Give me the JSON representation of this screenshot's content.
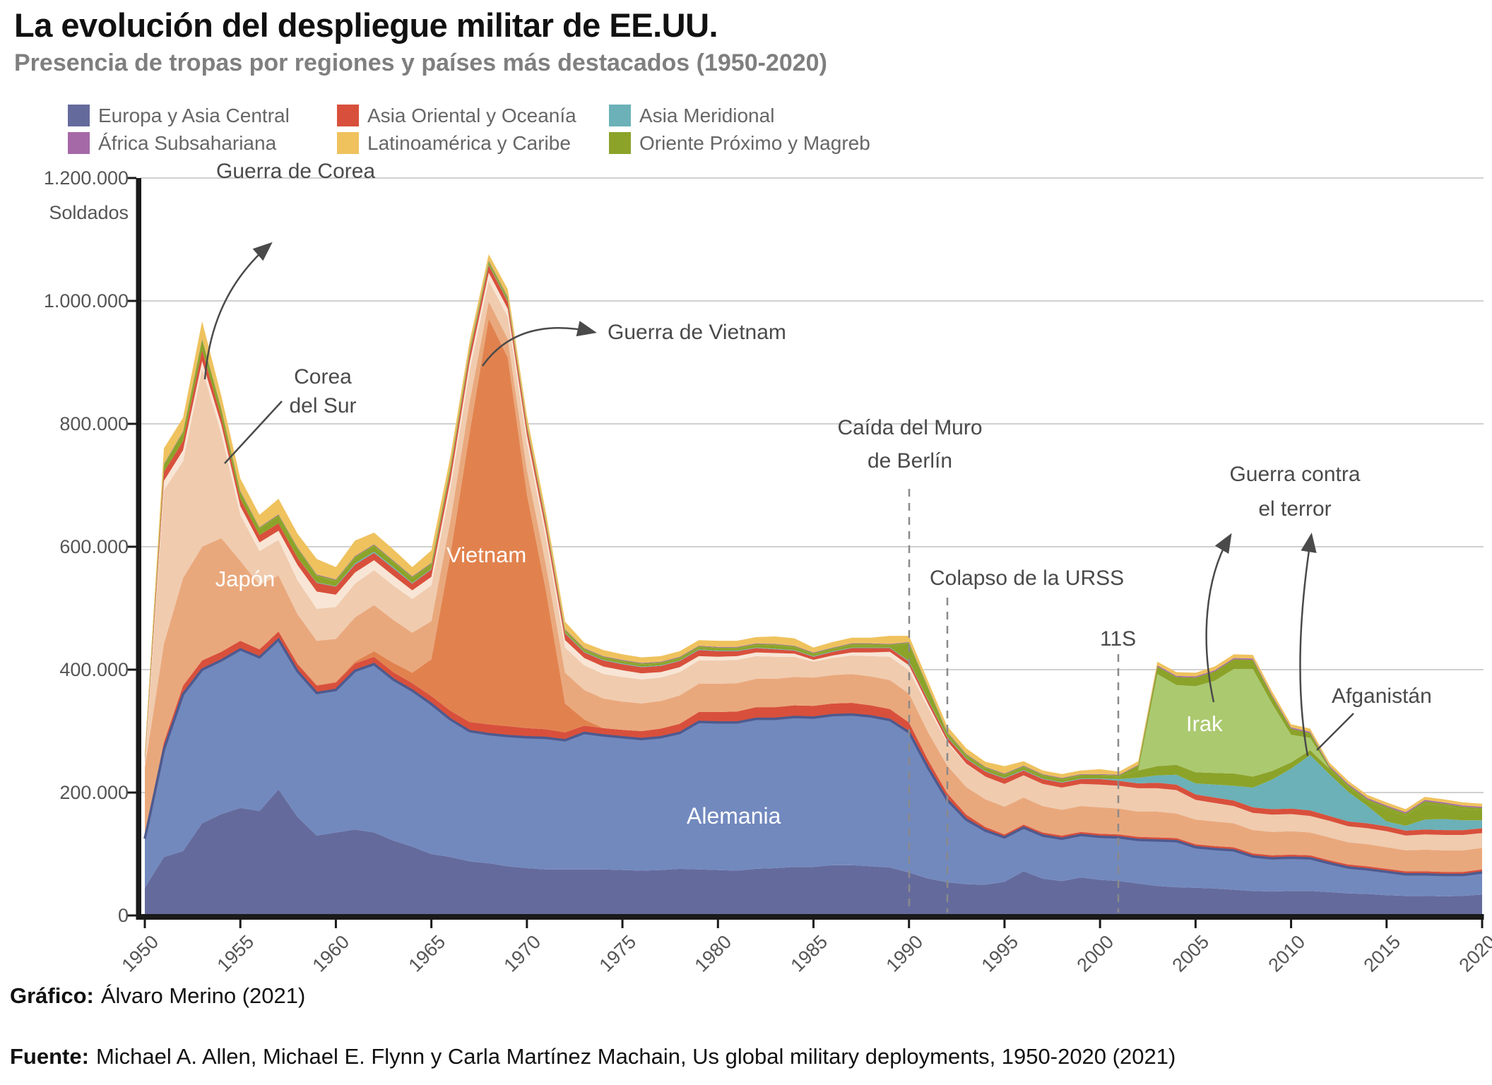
{
  "header": {
    "title": "La evolución del despliegue militar de EE.UU.",
    "subtitle": "Presencia de tropas por regiones y países más destacados (1950-2020)"
  },
  "legend": [
    {
      "label": "Europa y Asia Central",
      "color": "#646B9C"
    },
    {
      "label": "Asia Oriental y Oceanía",
      "color": "#D8503C"
    },
    {
      "label": "Asia Meridional",
      "color": "#6BB1B7"
    },
    {
      "label": "África Subsahariana",
      "color": "#A569A7"
    },
    {
      "label": "Latinoamérica y Caribe",
      "color": "#EFC25E"
    },
    {
      "label": "Oriente Próximo y Magreb",
      "color": "#8BA329"
    }
  ],
  "y_axis": {
    "unit_label": "Soldados",
    "ticks": [
      {
        "value": 1200000,
        "label": "1.200.000"
      },
      {
        "value": 1000000,
        "label": "1.000.000"
      },
      {
        "value": 800000,
        "label": "800.000"
      },
      {
        "value": 600000,
        "label": "600.000"
      },
      {
        "value": 400000,
        "label": "400.000"
      },
      {
        "value": 200000,
        "label": "200.000"
      },
      {
        "value": 0,
        "label": "0"
      }
    ]
  },
  "x_axis": {
    "ticks": [
      "1950",
      "1955",
      "1960",
      "1965",
      "1970",
      "1975",
      "1980",
      "1985",
      "1990",
      "1995",
      "2000",
      "2005",
      "2010",
      "2015",
      "2020"
    ]
  },
  "annotations": {
    "korea_war": "Guerra de Corea",
    "south_korea_line1": "Corea",
    "south_korea_line2": "del Sur",
    "vietnam_war": "Guerra de Vietnam",
    "berlin_line1": "Caída del Muro",
    "berlin_line2": "de Berlín",
    "ussr": "Colapso de la URSS",
    "nine_eleven": "11S",
    "terror_line1": "Guerra contra",
    "terror_line2": "el terror",
    "afghanistan": "Afganistán"
  },
  "area_labels": {
    "japon": "Japón",
    "vietnam": "Vietnam",
    "alemania": "Alemania",
    "irak": "Irak"
  },
  "footer": {
    "credit_label": "Gráfico:",
    "credit": "Álvaro Merino (2021)",
    "source_label": "Fuente:",
    "source": "Michael A. Allen, Michael E. Flynn y Carla Martínez Machain, Us global military deployments, 1950-2020 (2021)"
  },
  "chart_data": {
    "type": "area",
    "stacked": true,
    "title": "La evolución del despliegue militar de EE.UU.",
    "x_start": 1950,
    "x_end": 2020,
    "x_step": 1,
    "unit": "miles de soldados",
    "ylim": [
      0,
      1200000
    ],
    "grid": true,
    "legend_position": "top",
    "series": [
      {
        "id": "europa_resto",
        "name": "Europa y Asia Central (resto)",
        "color": "#646B9C",
        "values": [
          45,
          95,
          105,
          150,
          165,
          175,
          170,
          205,
          160,
          130,
          135,
          140,
          135,
          122,
          112,
          100,
          95,
          88,
          85,
          80,
          77,
          75,
          75,
          75,
          75,
          74,
          73,
          74,
          76,
          75,
          74,
          73,
          76,
          77,
          79,
          79,
          82,
          82,
          80,
          78,
          70,
          60,
          54,
          51,
          50,
          55,
          72,
          60,
          56,
          62,
          58,
          56,
          52,
          48,
          46,
          45,
          44,
          42,
          40,
          39,
          40,
          40,
          38,
          36,
          35,
          33,
          32,
          32,
          31,
          32,
          34
        ]
      },
      {
        "id": "alemania",
        "name": "Alemania",
        "color": "#7289BE",
        "values": [
          80,
          175,
          255,
          250,
          250,
          258,
          250,
          244,
          237,
          232,
          232,
          258,
          274,
          262,
          254,
          244,
          224,
          212,
          210,
          212,
          213,
          214,
          210,
          222,
          218,
          216,
          214,
          216,
          221,
          240,
          240,
          241,
          244,
          243,
          244,
          243,
          244,
          245,
          244,
          240,
          228,
          180,
          134,
          105,
          88,
          72,
          71,
          70,
          69,
          69,
          70,
          71,
          71,
          74,
          75,
          66,
          64,
          64,
          56,
          54,
          54,
          53,
          47,
          42,
          40,
          38,
          35,
          35,
          35,
          34,
          36
        ]
      },
      {
        "id": "asia_oriental_borde",
        "name": "Asia Oriental y Oceanía (franja inferior)",
        "color": "#D8503C",
        "values": [
          8,
          12,
          14,
          15,
          14,
          14,
          13,
          13,
          12,
          12,
          12,
          12,
          12,
          12,
          12,
          13,
          14,
          15,
          16,
          16,
          15,
          14,
          13,
          12,
          12,
          12,
          13,
          14,
          15,
          16,
          17,
          18,
          19,
          19,
          19,
          19,
          19,
          19,
          18,
          18,
          16,
          13,
          11,
          8,
          6,
          5,
          5,
          5,
          5,
          5,
          5,
          5,
          5,
          5,
          5,
          5,
          5,
          5,
          5,
          5,
          5,
          5,
          5,
          5,
          5,
          5,
          5,
          5,
          5,
          5,
          5
        ]
      },
      {
        "id": "vietnam",
        "name": "Vietnam",
        "color": "#E1824E",
        "values": [
          0,
          0,
          0,
          0,
          0,
          0,
          0,
          1,
          1,
          1,
          1,
          3,
          9,
          15,
          17,
          60,
          255,
          470,
          660,
          600,
          380,
          225,
          47,
          10,
          0,
          0,
          0,
          0,
          0,
          0,
          0,
          0,
          0,
          0,
          0,
          0,
          0,
          0,
          0,
          0,
          0,
          0,
          0,
          0,
          0,
          0,
          0,
          0,
          0,
          0,
          0,
          0,
          0,
          0,
          0,
          0,
          0,
          0,
          0,
          0,
          0,
          0,
          0,
          0,
          0,
          0,
          0,
          0,
          0,
          0,
          0
        ]
      },
      {
        "id": "japon",
        "name": "Japón",
        "color": "#E9A87C",
        "values": [
          108,
          160,
          175,
          185,
          185,
          130,
          105,
          90,
          80,
          72,
          70,
          72,
          75,
          70,
          65,
          62,
          55,
          50,
          28,
          30,
          40,
          42,
          50,
          48,
          48,
          46,
          45,
          45,
          46,
          46,
          46,
          46,
          46,
          46,
          46,
          46,
          46,
          47,
          47,
          47,
          47,
          45,
          45,
          45,
          45,
          45,
          44,
          43,
          42,
          42,
          43,
          42,
          41,
          42,
          40,
          40,
          40,
          39,
          38,
          38,
          38,
          37,
          37,
          36,
          36,
          35,
          34,
          35,
          35,
          35,
          35
        ]
      },
      {
        "id": "corea_del_sur",
        "name": "Corea del Sur",
        "color": "#F0CBAE",
        "values": [
          2,
          250,
          190,
          290,
          170,
          75,
          55,
          58,
          55,
          52,
          52,
          55,
          57,
          56,
          55,
          58,
          52,
          50,
          34,
          36,
          44,
          43,
          41,
          40,
          40,
          40,
          39,
          38,
          38,
          38,
          38,
          38,
          37,
          36,
          33,
          26,
          28,
          30,
          33,
          38,
          38,
          40,
          37,
          37,
          37,
          37,
          36,
          36,
          36,
          36,
          37,
          37,
          38,
          38,
          38,
          32,
          30,
          28,
          28,
          28,
          28,
          27,
          27,
          26,
          26,
          26,
          24,
          25,
          25,
          25,
          24
        ]
      },
      {
        "id": "asia_oriental_claro",
        "name": "Asia Oriental y Oceanía (franja clara)",
        "color": "#F8E5D5",
        "values": [
          5,
          15,
          18,
          12,
          15,
          14,
          14,
          15,
          25,
          28,
          20,
          18,
          16,
          16,
          14,
          14,
          14,
          15,
          13,
          13,
          13,
          12,
          12,
          12,
          12,
          11,
          10,
          9,
          8,
          7,
          6,
          6,
          6,
          6,
          5,
          3,
          4,
          5,
          6,
          8,
          8,
          6,
          3,
          1,
          0,
          0,
          0,
          0,
          0,
          0,
          0,
          0,
          0,
          0,
          0,
          0,
          0,
          0,
          0,
          0,
          0,
          0,
          0,
          0,
          0,
          0,
          0,
          0,
          0,
          0,
          0
        ]
      },
      {
        "id": "asia_oriental_resto",
        "name": "Asia Oriental y Oceanía (resto)",
        "color": "#D8503C",
        "values": [
          5,
          15,
          15,
          18,
          12,
          12,
          12,
          12,
          12,
          14,
          13,
          13,
          12,
          12,
          11,
          12,
          14,
          13,
          12,
          12,
          12,
          11,
          11,
          9,
          10,
          10,
          10,
          10,
          10,
          10,
          9,
          8,
          7,
          6,
          5,
          5,
          6,
          7,
          7,
          6,
          6,
          6,
          6,
          8,
          8,
          9,
          8,
          8,
          8,
          8,
          9,
          8,
          8,
          9,
          9,
          9,
          9,
          9,
          9,
          9,
          9,
          9,
          8,
          8,
          8,
          8,
          8,
          8,
          8,
          8,
          8
        ]
      },
      {
        "id": "asia_meridional",
        "name": "Asia Meridional (Afganistán)",
        "color": "#6BB1B7",
        "values": [
          0,
          0,
          0,
          0,
          0,
          0,
          0,
          0,
          0,
          1,
          1,
          2,
          2,
          2,
          1,
          1,
          1,
          1,
          1,
          1,
          1,
          1,
          1,
          1,
          1,
          1,
          1,
          1,
          1,
          1,
          1,
          1,
          1,
          1,
          1,
          1,
          1,
          1,
          1,
          1,
          1,
          1,
          1,
          1,
          1,
          1,
          1,
          1,
          1,
          1,
          1,
          3,
          9,
          12,
          16,
          18,
          21,
          24,
          32,
          48,
          65,
          90,
          68,
          48,
          28,
          8,
          8,
          16,
          18,
          16,
          13
        ]
      },
      {
        "id": "oriente_proximo_1",
        "name": "Oriente Próximo y Magreb (resto, inferior)",
        "color": "#8BA329",
        "values": [
          4,
          10,
          13,
          16,
          12,
          10,
          10,
          12,
          14,
          10,
          8,
          9,
          9,
          8,
          8,
          7,
          6,
          5,
          4,
          4,
          3,
          3,
          3,
          3,
          3,
          3,
          3,
          3,
          3,
          3,
          3,
          3,
          4,
          5,
          4,
          3,
          3,
          4,
          4,
          3,
          28,
          18,
          5,
          4,
          4,
          4,
          4,
          4,
          4,
          4,
          4,
          4,
          12,
          15,
          16,
          18,
          19,
          20,
          18,
          14,
          10,
          8,
          9,
          8,
          8,
          20,
          16,
          26,
          21,
          18,
          16
        ]
      },
      {
        "id": "irak",
        "name": "Irak",
        "color": "#ABC96F",
        "values": [
          0,
          0,
          0,
          0,
          0,
          0,
          0,
          0,
          0,
          0,
          0,
          0,
          0,
          0,
          0,
          0,
          0,
          0,
          0,
          0,
          0,
          0,
          0,
          0,
          0,
          0,
          0,
          0,
          0,
          0,
          0,
          0,
          0,
          0,
          0,
          0,
          0,
          0,
          0,
          0,
          0,
          0,
          0,
          0,
          0,
          0,
          0,
          0,
          0,
          0,
          0,
          0,
          0,
          150,
          130,
          140,
          150,
          170,
          175,
          110,
          45,
          20,
          0,
          0,
          0,
          0,
          0,
          0,
          0,
          0,
          0
        ]
      },
      {
        "id": "oriente_proximo_2",
        "name": "Oriente Próximo y Magreb (resto, superior)",
        "color": "#8BA329",
        "values": [
          2,
          2,
          2,
          2,
          2,
          2,
          2,
          2,
          2,
          2,
          2,
          2,
          2,
          2,
          2,
          2,
          2,
          2,
          2,
          2,
          2,
          2,
          2,
          2,
          2,
          2,
          2,
          2,
          2,
          2,
          2,
          2,
          2,
          2,
          2,
          2,
          2,
          2,
          2,
          2,
          2,
          2,
          2,
          2,
          2,
          2,
          2,
          2,
          2,
          2,
          2,
          2,
          8,
          12,
          13,
          14,
          15,
          16,
          15,
          12,
          10,
          8,
          3,
          3,
          3,
          4,
          4,
          4,
          4,
          4,
          4
        ]
      },
      {
        "id": "africa_subsahariana",
        "name": "África Subsahariana",
        "color": "#A569A7",
        "values": [
          1,
          1,
          1,
          1,
          1,
          1,
          1,
          1,
          1,
          1,
          1,
          1,
          1,
          1,
          1,
          1,
          1,
          1,
          1,
          1,
          1,
          1,
          1,
          1,
          1,
          1,
          1,
          1,
          1,
          1,
          1,
          1,
          1,
          1,
          1,
          1,
          1,
          1,
          1,
          1,
          1,
          1,
          1,
          1,
          1,
          1,
          1,
          1,
          1,
          1,
          1,
          1,
          1,
          2,
          2,
          2,
          2,
          2,
          2,
          2,
          2,
          2,
          2,
          2,
          2,
          2,
          2,
          2,
          2,
          2,
          2
        ]
      },
      {
        "id": "latinoamerica",
        "name": "Latinoamérica y Caribe",
        "color": "#EFC25E",
        "values": [
          7,
          25,
          22,
          28,
          20,
          20,
          20,
          25,
          22,
          25,
          20,
          25,
          19,
          18,
          15,
          20,
          15,
          12,
          10,
          12,
          12,
          12,
          12,
          9,
          10,
          9,
          9,
          9,
          9,
          9,
          10,
          10,
          10,
          12,
          12,
          8,
          9,
          9,
          9,
          13,
          10,
          9,
          9,
          9,
          8,
          12,
          7,
          6,
          6,
          6,
          8,
          5,
          6,
          6,
          6,
          6,
          6,
          6,
          6,
          6,
          5,
          5,
          5,
          5,
          5,
          5,
          5,
          5,
          5,
          5,
          5
        ]
      }
    ]
  }
}
